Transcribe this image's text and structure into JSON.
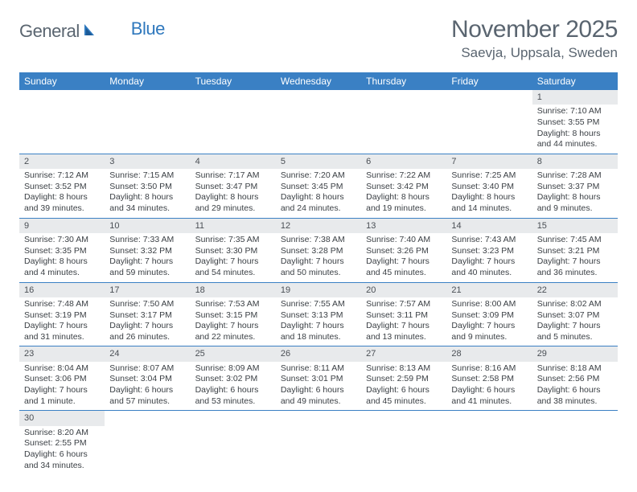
{
  "brand": {
    "part1": "General",
    "part2": "Blue"
  },
  "title": "November 2025",
  "location": "Saevja, Uppsala, Sweden",
  "colors": {
    "header_bg": "#3a80c4",
    "header_text": "#ffffff",
    "daynum_bg": "#e8eaec",
    "text": "#3a3f44",
    "muted": "#5a6570",
    "rule": "#3a80c4"
  },
  "weekdays": [
    "Sunday",
    "Monday",
    "Tuesday",
    "Wednesday",
    "Thursday",
    "Friday",
    "Saturday"
  ],
  "weeks": [
    [
      null,
      null,
      null,
      null,
      null,
      null,
      {
        "n": "1",
        "sr": "Sunrise: 7:10 AM",
        "ss": "Sunset: 3:55 PM",
        "dl": "Daylight: 8 hours and 44 minutes."
      }
    ],
    [
      {
        "n": "2",
        "sr": "Sunrise: 7:12 AM",
        "ss": "Sunset: 3:52 PM",
        "dl": "Daylight: 8 hours and 39 minutes."
      },
      {
        "n": "3",
        "sr": "Sunrise: 7:15 AM",
        "ss": "Sunset: 3:50 PM",
        "dl": "Daylight: 8 hours and 34 minutes."
      },
      {
        "n": "4",
        "sr": "Sunrise: 7:17 AM",
        "ss": "Sunset: 3:47 PM",
        "dl": "Daylight: 8 hours and 29 minutes."
      },
      {
        "n": "5",
        "sr": "Sunrise: 7:20 AM",
        "ss": "Sunset: 3:45 PM",
        "dl": "Daylight: 8 hours and 24 minutes."
      },
      {
        "n": "6",
        "sr": "Sunrise: 7:22 AM",
        "ss": "Sunset: 3:42 PM",
        "dl": "Daylight: 8 hours and 19 minutes."
      },
      {
        "n": "7",
        "sr": "Sunrise: 7:25 AM",
        "ss": "Sunset: 3:40 PM",
        "dl": "Daylight: 8 hours and 14 minutes."
      },
      {
        "n": "8",
        "sr": "Sunrise: 7:28 AM",
        "ss": "Sunset: 3:37 PM",
        "dl": "Daylight: 8 hours and 9 minutes."
      }
    ],
    [
      {
        "n": "9",
        "sr": "Sunrise: 7:30 AM",
        "ss": "Sunset: 3:35 PM",
        "dl": "Daylight: 8 hours and 4 minutes."
      },
      {
        "n": "10",
        "sr": "Sunrise: 7:33 AM",
        "ss": "Sunset: 3:32 PM",
        "dl": "Daylight: 7 hours and 59 minutes."
      },
      {
        "n": "11",
        "sr": "Sunrise: 7:35 AM",
        "ss": "Sunset: 3:30 PM",
        "dl": "Daylight: 7 hours and 54 minutes."
      },
      {
        "n": "12",
        "sr": "Sunrise: 7:38 AM",
        "ss": "Sunset: 3:28 PM",
        "dl": "Daylight: 7 hours and 50 minutes."
      },
      {
        "n": "13",
        "sr": "Sunrise: 7:40 AM",
        "ss": "Sunset: 3:26 PM",
        "dl": "Daylight: 7 hours and 45 minutes."
      },
      {
        "n": "14",
        "sr": "Sunrise: 7:43 AM",
        "ss": "Sunset: 3:23 PM",
        "dl": "Daylight: 7 hours and 40 minutes."
      },
      {
        "n": "15",
        "sr": "Sunrise: 7:45 AM",
        "ss": "Sunset: 3:21 PM",
        "dl": "Daylight: 7 hours and 36 minutes."
      }
    ],
    [
      {
        "n": "16",
        "sr": "Sunrise: 7:48 AM",
        "ss": "Sunset: 3:19 PM",
        "dl": "Daylight: 7 hours and 31 minutes."
      },
      {
        "n": "17",
        "sr": "Sunrise: 7:50 AM",
        "ss": "Sunset: 3:17 PM",
        "dl": "Daylight: 7 hours and 26 minutes."
      },
      {
        "n": "18",
        "sr": "Sunrise: 7:53 AM",
        "ss": "Sunset: 3:15 PM",
        "dl": "Daylight: 7 hours and 22 minutes."
      },
      {
        "n": "19",
        "sr": "Sunrise: 7:55 AM",
        "ss": "Sunset: 3:13 PM",
        "dl": "Daylight: 7 hours and 18 minutes."
      },
      {
        "n": "20",
        "sr": "Sunrise: 7:57 AM",
        "ss": "Sunset: 3:11 PM",
        "dl": "Daylight: 7 hours and 13 minutes."
      },
      {
        "n": "21",
        "sr": "Sunrise: 8:00 AM",
        "ss": "Sunset: 3:09 PM",
        "dl": "Daylight: 7 hours and 9 minutes."
      },
      {
        "n": "22",
        "sr": "Sunrise: 8:02 AM",
        "ss": "Sunset: 3:07 PM",
        "dl": "Daylight: 7 hours and 5 minutes."
      }
    ],
    [
      {
        "n": "23",
        "sr": "Sunrise: 8:04 AM",
        "ss": "Sunset: 3:06 PM",
        "dl": "Daylight: 7 hours and 1 minute."
      },
      {
        "n": "24",
        "sr": "Sunrise: 8:07 AM",
        "ss": "Sunset: 3:04 PM",
        "dl": "Daylight: 6 hours and 57 minutes."
      },
      {
        "n": "25",
        "sr": "Sunrise: 8:09 AM",
        "ss": "Sunset: 3:02 PM",
        "dl": "Daylight: 6 hours and 53 minutes."
      },
      {
        "n": "26",
        "sr": "Sunrise: 8:11 AM",
        "ss": "Sunset: 3:01 PM",
        "dl": "Daylight: 6 hours and 49 minutes."
      },
      {
        "n": "27",
        "sr": "Sunrise: 8:13 AM",
        "ss": "Sunset: 2:59 PM",
        "dl": "Daylight: 6 hours and 45 minutes."
      },
      {
        "n": "28",
        "sr": "Sunrise: 8:16 AM",
        "ss": "Sunset: 2:58 PM",
        "dl": "Daylight: 6 hours and 41 minutes."
      },
      {
        "n": "29",
        "sr": "Sunrise: 8:18 AM",
        "ss": "Sunset: 2:56 PM",
        "dl": "Daylight: 6 hours and 38 minutes."
      }
    ],
    [
      {
        "n": "30",
        "sr": "Sunrise: 8:20 AM",
        "ss": "Sunset: 2:55 PM",
        "dl": "Daylight: 6 hours and 34 minutes."
      },
      null,
      null,
      null,
      null,
      null,
      null
    ]
  ]
}
